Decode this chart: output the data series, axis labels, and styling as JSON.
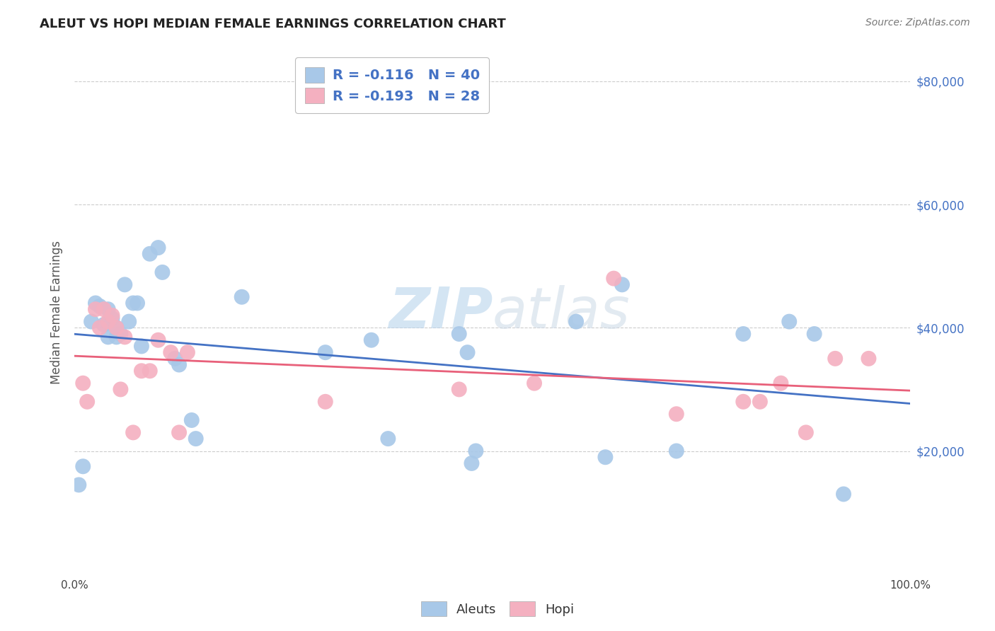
{
  "title": "ALEUT VS HOPI MEDIAN FEMALE EARNINGS CORRELATION CHART",
  "source": "Source: ZipAtlas.com",
  "ylabel": "Median Female Earnings",
  "xlim": [
    0,
    1
  ],
  "ylim": [
    0,
    85000
  ],
  "trend_blue": "#4472c4",
  "trend_pink": "#e8607a",
  "aleut_color": "#a8c8e8",
  "hopi_color": "#f4b0c0",
  "grid_color": "#cccccc",
  "background_color": "#ffffff",
  "watermark_color": "#d0e4f4",
  "aleut_scatter_x": [
    0.005,
    0.01,
    0.02,
    0.025,
    0.03,
    0.035,
    0.04,
    0.04,
    0.045,
    0.05,
    0.05,
    0.055,
    0.06,
    0.065,
    0.07,
    0.075,
    0.08,
    0.09,
    0.1,
    0.105,
    0.12,
    0.125,
    0.14,
    0.145,
    0.2,
    0.3,
    0.355,
    0.375,
    0.46,
    0.47,
    0.475,
    0.48,
    0.6,
    0.635,
    0.655,
    0.72,
    0.8,
    0.855,
    0.885,
    0.92
  ],
  "aleut_scatter_y": [
    14500,
    17500,
    41000,
    44000,
    43500,
    40500,
    43000,
    38500,
    41500,
    40000,
    38500,
    39000,
    47000,
    41000,
    44000,
    44000,
    37000,
    52000,
    53000,
    49000,
    35000,
    34000,
    25000,
    22000,
    45000,
    36000,
    38000,
    22000,
    39000,
    36000,
    18000,
    20000,
    41000,
    19000,
    47000,
    20000,
    39000,
    41000,
    39000,
    13000
  ],
  "hopi_scatter_x": [
    0.01,
    0.015,
    0.025,
    0.03,
    0.035,
    0.04,
    0.045,
    0.05,
    0.055,
    0.06,
    0.07,
    0.08,
    0.09,
    0.1,
    0.115,
    0.125,
    0.135,
    0.3,
    0.46,
    0.55,
    0.645,
    0.72,
    0.8,
    0.82,
    0.845,
    0.875,
    0.91,
    0.95
  ],
  "hopi_scatter_y": [
    31000,
    28000,
    43000,
    40000,
    43000,
    41000,
    42000,
    40000,
    30000,
    38500,
    23000,
    33000,
    33000,
    38000,
    36000,
    23000,
    36000,
    28000,
    30000,
    31000,
    48000,
    26000,
    28000,
    28000,
    31000,
    23000,
    35000,
    35000
  ],
  "legend_text1": "R = -0.116   N = 40",
  "legend_text2": "R = -0.193   N = 28"
}
